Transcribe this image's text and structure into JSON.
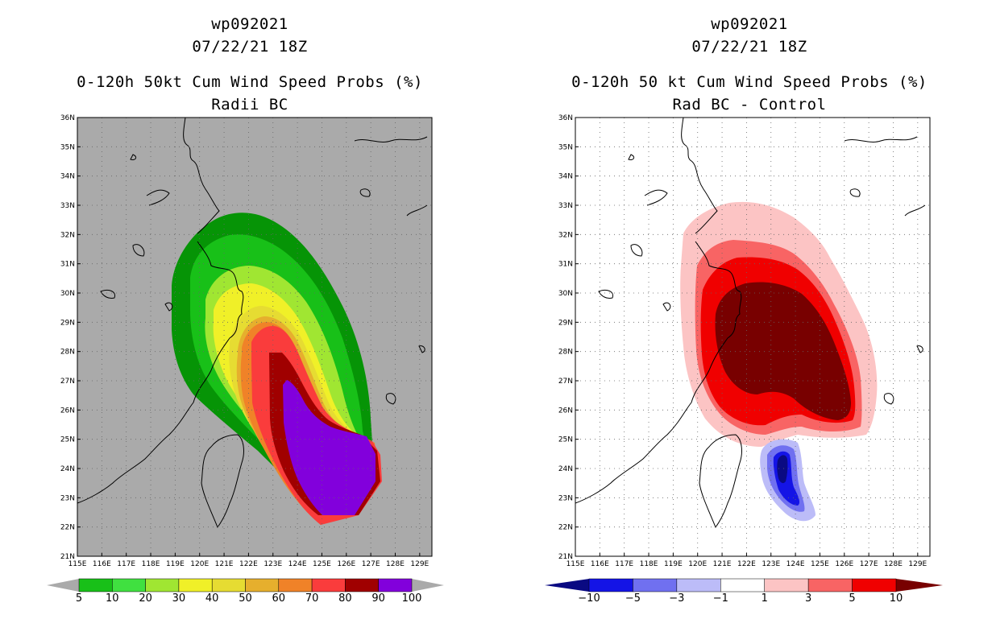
{
  "left_panel": {
    "storm_id": "wp092021",
    "datetime": "07/22/21 18Z",
    "title": "0-120h 50kt Cum Wind Speed Probs (%)",
    "subtitle": "Radii BC",
    "colorbar": {
      "labels": [
        "5",
        "10",
        "20",
        "30",
        "40",
        "50",
        "60",
        "70",
        "80",
        "90",
        "100"
      ],
      "colors": [
        "#069406",
        "#18c018",
        "#40e040",
        "#a0e632",
        "#f0f028",
        "#e6dc32",
        "#e6af2d",
        "#f08228",
        "#fa3c3c",
        "#a00000",
        "#8200dc"
      ]
    }
  },
  "right_panel": {
    "storm_id": "wp092021",
    "datetime": "07/22/21 18Z",
    "title": "0-120h 50 kt Cum Wind Speed Probs (%)",
    "subtitle": "Rad BC - Control",
    "colorbar": {
      "labels": [
        "-10",
        "-5",
        "-3",
        "-1",
        "1",
        "3",
        "5",
        "10"
      ],
      "colors": [
        "#0a0a82",
        "#1414e6",
        "#7070f0",
        "#bcbcf8",
        "#ffffff",
        "#fcc4c4",
        "#f86464",
        "#f00000",
        "#780000"
      ]
    }
  },
  "map_axes": {
    "lat_labels": [
      "21N",
      "22N",
      "23N",
      "24N",
      "25N",
      "26N",
      "27N",
      "28N",
      "29N",
      "30N",
      "31N",
      "32N",
      "33N",
      "34N",
      "35N",
      "36N"
    ],
    "lon_labels": [
      "115E",
      "116E",
      "117E",
      "118E",
      "119E",
      "120E",
      "121E",
      "122E",
      "123E",
      "124E",
      "125E",
      "126E",
      "127E",
      "128E",
      "129E"
    ],
    "lat_range": [
      21,
      36
    ],
    "lon_range": [
      115,
      129.5
    ]
  },
  "colors": {
    "background_left": "#aaaaaa",
    "background_right": "#ffffff"
  }
}
